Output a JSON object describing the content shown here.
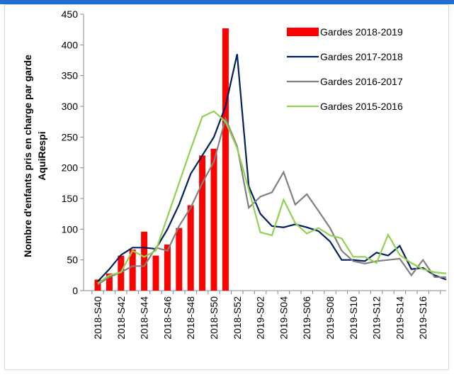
{
  "chart_data": {
    "type": "bar-line",
    "y_label": [
      "Nombre d'enfants pris en charge par garde",
      "AquiRespi"
    ],
    "categories": [
      "2018-S40",
      null,
      "2018-S42",
      null,
      "2018-S44",
      null,
      "2018-S46",
      null,
      "2018-S48",
      null,
      "2018-S50",
      null,
      "2018-S52",
      null,
      "2019-S02",
      null,
      "2019-S04",
      null,
      "2019-S06",
      null,
      "2019-S08",
      null,
      "2019-S10",
      null,
      "2019-S12",
      null,
      "2019-S14",
      null,
      "2019-S16",
      null,
      null
    ],
    "ylim": [
      0,
      450
    ],
    "yticks": [
      0,
      50,
      100,
      150,
      200,
      250,
      300,
      350,
      400,
      450
    ],
    "series": [
      {
        "name": "Gardes 2018-2019",
        "kind": "bar",
        "color": "#ff0000",
        "values": [
          18,
          28,
          57,
          67,
          96,
          57,
          75,
          102,
          139,
          220,
          231,
          427,
          null,
          null,
          null,
          null,
          null,
          null,
          null,
          null,
          null,
          null,
          null,
          null,
          null,
          null,
          null,
          null,
          null,
          null,
          null
        ]
      },
      {
        "name": "Gardes 2017-2018",
        "kind": "line",
        "color": "#002060",
        "values": [
          15,
          35,
          58,
          70,
          70,
          68,
          100,
          140,
          190,
          220,
          250,
          300,
          385,
          170,
          125,
          105,
          103,
          108,
          103,
          97,
          80,
          50,
          50,
          48,
          62,
          57,
          73,
          35,
          37,
          25,
          18
        ]
      },
      {
        "name": "Gardes 2016-2017",
        "kind": "line",
        "color": "#808080",
        "values": [
          10,
          22,
          30,
          40,
          40,
          70,
          65,
          105,
          135,
          175,
          210,
          280,
          235,
          135,
          153,
          160,
          193,
          140,
          157,
          130,
          102,
          65,
          48,
          44,
          48,
          50,
          52,
          25,
          50,
          22,
          22
        ]
      },
      {
        "name": "Gardes 2015-2016",
        "kind": "line",
        "color": "#92d050",
        "values": [
          12,
          25,
          30,
          65,
          55,
          65,
          120,
          175,
          230,
          283,
          292,
          275,
          232,
          165,
          95,
          90,
          148,
          110,
          93,
          102,
          90,
          85,
          55,
          55,
          45,
          91,
          58,
          45,
          35,
          30,
          28
        ]
      }
    ]
  }
}
